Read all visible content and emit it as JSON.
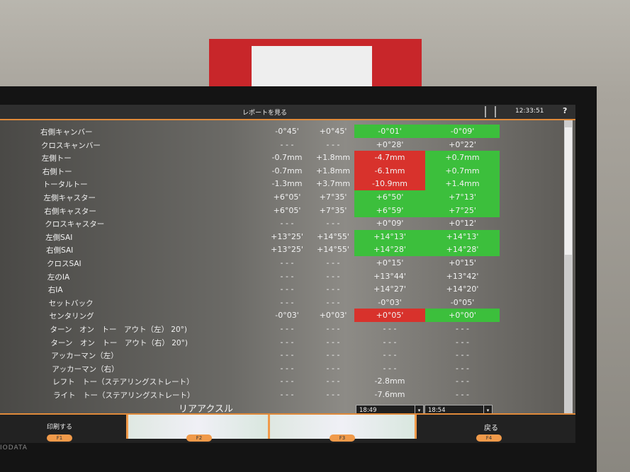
{
  "topbar": {
    "title": "レポートを見る",
    "clock": "12:33:51",
    "help": "?"
  },
  "colors": {
    "in_spec": "#3cbf3c",
    "out_of_spec": "#d8322c",
    "accent": "#e08a3a"
  },
  "rows": [
    {
      "label": "右側キャンバー",
      "min": "-0°45'",
      "max": "+0°45'",
      "before": "-0°01'",
      "before_status": "green",
      "after": "-0°09'",
      "after_status": "green"
    },
    {
      "label": "クロスキャンバー",
      "min": "- - -",
      "max": "- - -",
      "before": "+0°28'",
      "before_status": "",
      "after": "+0°22'",
      "after_status": ""
    },
    {
      "label": "左側トー",
      "min": "-0.7mm",
      "max": "+1.8mm",
      "before": "-4.7mm",
      "before_status": "red",
      "after": "+0.7mm",
      "after_status": "green"
    },
    {
      "label": "右側トー",
      "min": "-0.7mm",
      "max": "+1.8mm",
      "before": "-6.1mm",
      "before_status": "red",
      "after": "+0.7mm",
      "after_status": "green"
    },
    {
      "label": "トータルトー",
      "min": "-1.3mm",
      "max": "+3.7mm",
      "before": "-10.9mm",
      "before_status": "red",
      "after": "+1.4mm",
      "after_status": "green"
    },
    {
      "label": "左側キャスター",
      "min": "+6°05'",
      "max": "+7°35'",
      "before": "+6°50'",
      "before_status": "green",
      "after": "+7°13'",
      "after_status": "green"
    },
    {
      "label": "右側キャスター",
      "min": "+6°05'",
      "max": "+7°35'",
      "before": "+6°59'",
      "before_status": "green",
      "after": "+7°25'",
      "after_status": "green"
    },
    {
      "label": "クロスキャスター",
      "min": "- - -",
      "max": "- - -",
      "before": "+0°09'",
      "before_status": "",
      "after": "+0°12'",
      "after_status": ""
    },
    {
      "label": "左側SAI",
      "min": "+13°25'",
      "max": "+14°55'",
      "before": "+14°13'",
      "before_status": "green",
      "after": "+14°13'",
      "after_status": "green"
    },
    {
      "label": "右側SAI",
      "min": "+13°25'",
      "max": "+14°55'",
      "before": "+14°28'",
      "before_status": "green",
      "after": "+14°28'",
      "after_status": "green"
    },
    {
      "label": "クロスSAI",
      "min": "- - -",
      "max": "- - -",
      "before": "+0°15'",
      "before_status": "",
      "after": "+0°15'",
      "after_status": ""
    },
    {
      "label": "左のIA",
      "min": "- - -",
      "max": "- - -",
      "before": "+13°44'",
      "before_status": "",
      "after": "+13°42'",
      "after_status": ""
    },
    {
      "label": "右IA",
      "min": "- - -",
      "max": "- - -",
      "before": "+14°27'",
      "before_status": "",
      "after": "+14°20'",
      "after_status": ""
    },
    {
      "label": "セットバック",
      "min": "- - -",
      "max": "- - -",
      "before": "-0°03'",
      "before_status": "",
      "after": "-0°05'",
      "after_status": ""
    },
    {
      "label": "センタリング",
      "min": "-0°03'",
      "max": "+0°03'",
      "before": "+0°05'",
      "before_status": "red",
      "after": "+0°00'",
      "after_status": "green"
    },
    {
      "label": "ターン　オン　トー　アウト（左） 20°)",
      "min": "- - -",
      "max": "- - -",
      "before": "- - -",
      "before_status": "",
      "after": "- - -",
      "after_status": ""
    },
    {
      "label": "ターン　オン　トー　アウト（右） 20°)",
      "min": "- - -",
      "max": "- - -",
      "before": "- - -",
      "before_status": "",
      "after": "- - -",
      "after_status": ""
    },
    {
      "label": "アッカーマン（左）",
      "min": "- - -",
      "max": "- - -",
      "before": "- - -",
      "before_status": "",
      "after": "- - -",
      "after_status": ""
    },
    {
      "label": "アッカーマン（右）",
      "min": "- - -",
      "max": "- - -",
      "before": "- - -",
      "before_status": "",
      "after": "- - -",
      "after_status": ""
    },
    {
      "label": "レフト　トー（ステアリングストレート）",
      "min": "- - -",
      "max": "- - -",
      "before": "-2.8mm",
      "before_status": "",
      "after": "- - -",
      "after_status": ""
    },
    {
      "label": "ライト　トー（ステアリングストレート）",
      "min": "- - -",
      "max": "- - -",
      "before": "-7.6mm",
      "before_status": "",
      "after": "- - -",
      "after_status": ""
    }
  ],
  "section": "リアアクスル",
  "time_before": "18:49",
  "time_after": "18:54",
  "footer": {
    "f1_label": "印刷する",
    "f1": "F1",
    "f2": "F2",
    "f3": "F3",
    "f4_label": "戻る",
    "f4": "F4"
  },
  "brand": "IODATA"
}
